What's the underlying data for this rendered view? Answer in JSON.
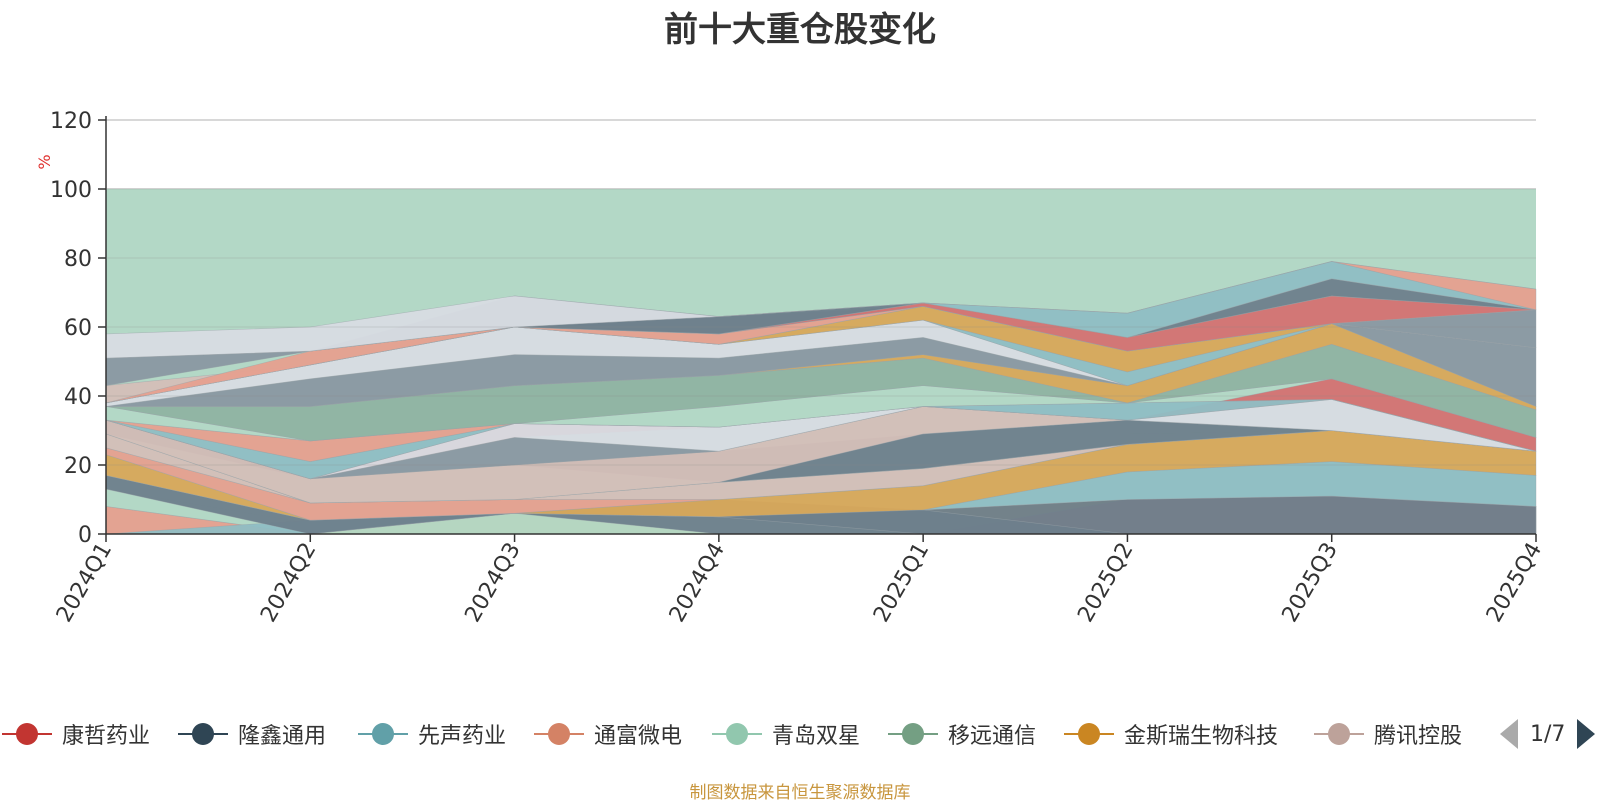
{
  "chart_data": {
    "type": "area",
    "title": "前十大重仓股变化",
    "ylabel": "%",
    "ylim": [
      0,
      120
    ],
    "yticks": [
      0,
      20,
      40,
      60,
      80,
      100,
      120
    ],
    "categories": [
      "2024Q1",
      "2024Q2",
      "2024Q3",
      "2024Q4",
      "2025Q1",
      "2025Q2",
      "2025Q3",
      "2025Q4"
    ],
    "background_band": {
      "name": "total",
      "values": [
        100,
        100,
        100,
        100,
        100,
        100,
        100,
        100
      ],
      "color": "#b3d8c6"
    },
    "layers": [
      {
        "name": "a",
        "color": "#e6a08f",
        "lower": [
          0,
          0,
          0,
          0,
          0,
          0,
          0,
          0
        ],
        "upper": [
          8,
          0,
          0,
          0,
          0,
          0,
          0,
          0
        ]
      },
      {
        "name": "b",
        "color": "#d8a85a",
        "lower": [
          0,
          0,
          0,
          0,
          0,
          0,
          0,
          0
        ],
        "upper": [
          0,
          0,
          6,
          5,
          7,
          10,
          11,
          8
        ]
      },
      {
        "name": "c",
        "color": "#d47272",
        "lower": [
          0,
          0,
          0,
          0,
          0,
          0,
          0,
          0
        ],
        "upper": [
          0,
          0,
          0,
          0,
          0,
          10,
          11,
          8
        ]
      },
      {
        "name": "d",
        "color": "#b3d8c6",
        "lower": [
          8,
          0,
          0,
          0,
          0,
          0,
          0,
          0
        ],
        "upper": [
          13,
          3,
          6,
          5,
          0,
          0,
          0,
          0
        ]
      },
      {
        "name": "e",
        "color": "#6e7f8c",
        "lower": [
          0,
          0,
          6,
          0,
          0,
          0,
          0,
          0
        ],
        "upper": [
          0,
          0,
          6,
          5,
          7,
          10,
          11,
          8
        ]
      },
      {
        "name": "f",
        "color": "#8fbec4",
        "lower": [
          0,
          0,
          6,
          5,
          7,
          10,
          11,
          8
        ],
        "upper": [
          0,
          4,
          6,
          5,
          7,
          18,
          21,
          17
        ]
      },
      {
        "name": "g",
        "color": "#6e7f8c",
        "lower": [
          13,
          0,
          6,
          5,
          0,
          0,
          0,
          0
        ],
        "upper": [
          17,
          4,
          6,
          10,
          7,
          0,
          0,
          0
        ]
      },
      {
        "name": "h",
        "color": "#d8a85a",
        "lower": [
          17,
          4,
          6,
          5,
          7,
          18,
          21,
          17
        ],
        "upper": [
          23,
          4,
          6,
          10,
          14,
          26,
          30,
          24
        ]
      },
      {
        "name": "i",
        "color": "#e6a08f",
        "lower": [
          23,
          4,
          6,
          10,
          14,
          26,
          30,
          24
        ],
        "upper": [
          25,
          9,
          10,
          10,
          14,
          26,
          30,
          24
        ]
      },
      {
        "name": "j",
        "color": "#d4bfb8",
        "lower": [
          25,
          9,
          10,
          10,
          14,
          26,
          30,
          24
        ],
        "upper": [
          29,
          9,
          10,
          15,
          19,
          26,
          30,
          24
        ]
      },
      {
        "name": "k",
        "color": "#b3d8c6",
        "lower": [
          29,
          9,
          10,
          15,
          19,
          26,
          30,
          24
        ],
        "upper": [
          29,
          16,
          20,
          15,
          29,
          29,
          30,
          24
        ]
      },
      {
        "name": "l",
        "color": "#6e7f8c",
        "lower": [
          29,
          16,
          20,
          15,
          19,
          26,
          30,
          24
        ],
        "upper": [
          33,
          16,
          20,
          24,
          29,
          33,
          30,
          24
        ]
      },
      {
        "name": "m",
        "color": "#d4bfb8",
        "lower": [
          29,
          9,
          10,
          15,
          29,
          33,
          30,
          24
        ],
        "upper": [
          33,
          16,
          20,
          24,
          37,
          33,
          30,
          24
        ]
      },
      {
        "name": "n",
        "color": "#8a98a2",
        "lower": [
          33,
          16,
          20,
          24,
          37,
          33,
          30,
          24
        ],
        "upper": [
          33,
          16,
          28,
          24,
          37,
          33,
          30,
          24
        ]
      },
      {
        "name": "o",
        "color": "#d47272",
        "lower": [
          33,
          16,
          28,
          31,
          37,
          33,
          39,
          24
        ],
        "upper": [
          33,
          16,
          32,
          31,
          37,
          33,
          45,
          28
        ]
      },
      {
        "name": "p",
        "color": "#d8dce3",
        "lower": [
          33,
          16,
          28,
          24,
          37,
          33,
          30,
          24
        ],
        "upper": [
          33,
          16,
          32,
          31,
          37,
          33,
          39,
          24
        ]
      },
      {
        "name": "q",
        "color": "#8fbec4",
        "lower": [
          33,
          16,
          32,
          31,
          37,
          33,
          39,
          24
        ],
        "upper": [
          33,
          21,
          32,
          31,
          37,
          38,
          39,
          24
        ]
      },
      {
        "name": "r",
        "color": "#e6a08f",
        "lower": [
          33,
          21,
          32,
          31,
          37,
          38,
          39,
          24
        ],
        "upper": [
          33,
          27,
          32,
          31,
          37,
          38,
          39,
          24
        ]
      },
      {
        "name": "s",
        "color": "#b3d8c6",
        "lower": [
          33,
          27,
          32,
          31,
          37,
          38,
          45,
          28
        ],
        "upper": [
          37,
          27,
          32,
          37,
          43,
          38,
          45,
          28
        ]
      },
      {
        "name": "t",
        "color": "#8fb3a2",
        "lower": [
          37,
          27,
          32,
          37,
          43,
          38,
          45,
          28
        ],
        "upper": [
          37,
          37,
          43,
          46,
          51,
          38,
          55,
          36
        ]
      },
      {
        "name": "u",
        "color": "#d8a85a",
        "lower": [
          37,
          37,
          43,
          46,
          51,
          38,
          55,
          36
        ],
        "upper": [
          37,
          37,
          43,
          46,
          52,
          43,
          61,
          37
        ]
      },
      {
        "name": "v",
        "color": "#8fbec4",
        "lower": [
          37,
          37,
          43,
          46,
          52,
          43,
          61,
          37
        ],
        "upper": [
          37,
          37,
          43,
          46,
          52,
          43,
          61,
          37
        ]
      },
      {
        "name": "w",
        "color": "#8a98a2",
        "lower": [
          37,
          37,
          43,
          46,
          52,
          43,
          61,
          37
        ],
        "upper": [
          37,
          45,
          52,
          51,
          57,
          43,
          61,
          54
        ]
      },
      {
        "name": "x",
        "color": "#d8dce3",
        "lower": [
          37,
          45,
          52,
          51,
          57,
          43,
          61,
          54
        ],
        "upper": [
          38,
          49,
          60,
          55,
          62,
          43,
          61,
          54
        ]
      },
      {
        "name": "y",
        "color": "#8fbec4",
        "lower": [
          38,
          49,
          60,
          55,
          62,
          43,
          61,
          54
        ],
        "upper": [
          38,
          49,
          60,
          55,
          62,
          47,
          61,
          54
        ]
      },
      {
        "name": "z",
        "color": "#d8a85a",
        "lower": [
          38,
          49,
          60,
          55,
          62,
          47,
          61,
          54
        ],
        "upper": [
          38,
          49,
          60,
          55,
          66,
          53,
          61,
          54
        ]
      },
      {
        "name": "aa",
        "color": "#d4bfb8",
        "lower": [
          38,
          49,
          60,
          55,
          66,
          53,
          61,
          54
        ],
        "upper": [
          43,
          49,
          60,
          55,
          66,
          53,
          61,
          54
        ]
      },
      {
        "name": "ab",
        "color": "#e6a08f",
        "lower": [
          38,
          49,
          60,
          55,
          66,
          53,
          61,
          54
        ],
        "upper": [
          38,
          53,
          60,
          58,
          66,
          53,
          61,
          54
        ]
      },
      {
        "name": "ac",
        "color": "#8a98a2",
        "lower": [
          43,
          53,
          60,
          58,
          66,
          53,
          61,
          54
        ],
        "upper": [
          51,
          53,
          69,
          63,
          66,
          53,
          61,
          65
        ]
      },
      {
        "name": "ad",
        "color": "#d47272",
        "lower": [
          51,
          53,
          60,
          58,
          66,
          53,
          61,
          65
        ],
        "upper": [
          51,
          53,
          60,
          58,
          67,
          57,
          69,
          65
        ]
      },
      {
        "name": "ae",
        "color": "#6e7f8c",
        "lower": [
          51,
          53,
          60,
          58,
          67,
          57,
          69,
          65
        ],
        "upper": [
          51,
          53,
          60,
          63,
          67,
          57,
          74,
          65
        ]
      },
      {
        "name": "af",
        "color": "#8fbec4",
        "lower": [
          51,
          53,
          60,
          63,
          67,
          57,
          74,
          65
        ],
        "upper": [
          51,
          53,
          60,
          63,
          67,
          64,
          79,
          65
        ]
      },
      {
        "name": "ag",
        "color": "#e6a08f",
        "lower": [
          51,
          53,
          60,
          63,
          67,
          64,
          79,
          65
        ],
        "upper": [
          51,
          53,
          60,
          63,
          67,
          64,
          79,
          71
        ]
      },
      {
        "name": "ah",
        "color": "#d8dce3",
        "lower": [
          51,
          53,
          60,
          63,
          67,
          64,
          79,
          71
        ],
        "upper": [
          58,
          60,
          69,
          63,
          67,
          64,
          79,
          71
        ]
      }
    ],
    "legend": {
      "items": [
        {
          "name": "康哲药业",
          "color": "#c23531"
        },
        {
          "name": "隆鑫通用",
          "color": "#2f4554"
        },
        {
          "name": "先声药业",
          "color": "#61a0a8"
        },
        {
          "name": "通富微电",
          "color": "#d48265"
        },
        {
          "name": "青岛双星",
          "color": "#91c7ae"
        },
        {
          "name": "移远通信",
          "color": "#749f83"
        },
        {
          "name": "金斯瑞生物科技",
          "color": "#ca8622"
        },
        {
          "name": "腾讯控股",
          "color": "#bda29a"
        }
      ],
      "page": "1/7"
    },
    "source": "制图数据来自恒生聚源数据库"
  }
}
